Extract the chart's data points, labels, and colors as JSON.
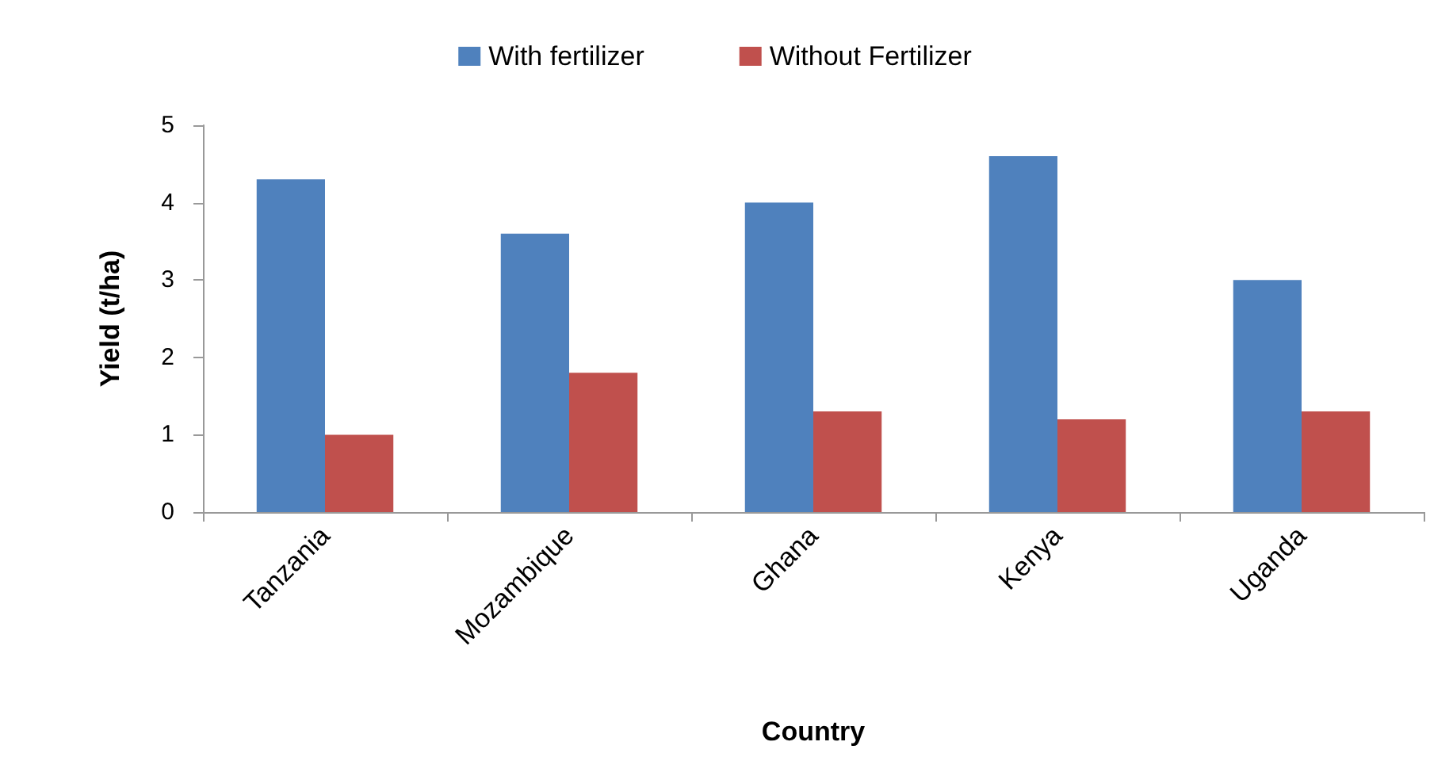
{
  "chart_data": {
    "type": "bar",
    "xlabel": "Country",
    "ylabel": "Yield (t/ha)",
    "categories": [
      "Tanzania",
      "Mozambique",
      "Ghana",
      "Kenya",
      "Uganda"
    ],
    "series": [
      {
        "name": "With fertilizer",
        "color": "#4f81bd",
        "values": [
          4.3,
          3.6,
          4.0,
          4.6,
          3.0
        ]
      },
      {
        "name": "Without Fertilizer",
        "color": "#c0504d",
        "values": [
          1.0,
          1.8,
          1.3,
          1.2,
          1.3
        ]
      }
    ],
    "ylim": [
      0,
      5
    ],
    "yticks": [
      0,
      1,
      2,
      3,
      4,
      5
    ],
    "grid": false,
    "legend": "top"
  }
}
